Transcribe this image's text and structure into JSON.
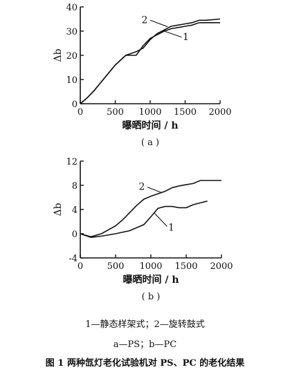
{
  "chart_data": [
    {
      "type": "line",
      "panel_label": "( a )",
      "xlabel": "曝晒时间 / h",
      "ylabel": "Δb",
      "xlim": [
        0,
        2000
      ],
      "ylim": [
        0,
        40
      ],
      "xticks": [
        0,
        500,
        1000,
        1500,
        2000
      ],
      "yticks": [
        0,
        10,
        20,
        30,
        40
      ],
      "tick_labels_x": [
        "0",
        "500",
        "1000",
        "1500",
        "2000"
      ],
      "tick_labels_y": [
        "0",
        "10",
        "20",
        "30",
        "40"
      ],
      "series": [
        {
          "name": "1",
          "x": [
            0,
            100,
            200,
            300,
            400,
            500,
            650,
            700,
            800,
            900,
            1000,
            1100,
            1200,
            1300,
            1400,
            1500,
            1600,
            1700,
            1800,
            2000
          ],
          "y": [
            0,
            2.5,
            5.5,
            9,
            12.5,
            16,
            20,
            20,
            20,
            24,
            27,
            28.5,
            30,
            31,
            31.5,
            32,
            32.5,
            33.5,
            33.5,
            33.5
          ]
        },
        {
          "name": "2",
          "x": [
            0,
            100,
            200,
            300,
            400,
            500,
            650,
            800,
            900,
            1000,
            1100,
            1200,
            1300,
            1400,
            1500,
            1600,
            1700,
            1800,
            2000
          ],
          "y": [
            0,
            2.5,
            5.5,
            9,
            12.5,
            16,
            20,
            21.5,
            23,
            26.5,
            29,
            30.5,
            32,
            32.5,
            33,
            33.5,
            34.5,
            34.5,
            35
          ]
        }
      ]
    },
    {
      "type": "line",
      "panel_label": "( b )",
      "xlabel": "曝晒时间 / h",
      "ylabel": "Δb",
      "xlim": [
        0,
        2000
      ],
      "ylim": [
        -4,
        12
      ],
      "xticks": [
        0,
        500,
        1000,
        1500,
        2000
      ],
      "yticks": [
        -4,
        0,
        4,
        8,
        12
      ],
      "tick_labels_x": [
        "0",
        "500",
        "1000",
        "1500",
        "2000"
      ],
      "tick_labels_y": [
        "-4",
        "0",
        "4",
        "8",
        "12"
      ],
      "series": [
        {
          "name": "1",
          "x": [
            0,
            150,
            300,
            500,
            700,
            900,
            1000,
            1100,
            1200,
            1300,
            1400,
            1500,
            1600,
            1700,
            1800
          ],
          "y": [
            0,
            -0.6,
            -0.4,
            0,
            0.5,
            1.5,
            2.8,
            4.2,
            4.5,
            4.5,
            4.3,
            4.3,
            4.8,
            5.1,
            5.4
          ]
        },
        {
          "name": "2",
          "x": [
            0,
            150,
            300,
            500,
            600,
            700,
            800,
            900,
            1000,
            1100,
            1200,
            1300,
            1400,
            1500,
            1600,
            1700,
            1800,
            2000
          ],
          "y": [
            0,
            -0.5,
            0,
            1.3,
            2.3,
            3.5,
            4.7,
            5.7,
            6.2,
            6.6,
            7.0,
            7.6,
            7.9,
            8.1,
            8.3,
            8.8,
            8.8,
            8.8
          ]
        }
      ]
    }
  ],
  "legend_note": "1—静态样架式；2—旋转鼓式",
  "material_note": "a—PS；b—PC",
  "caption": "图 1   两种氙灯老化试验机对 PS、PC 的老化结果"
}
